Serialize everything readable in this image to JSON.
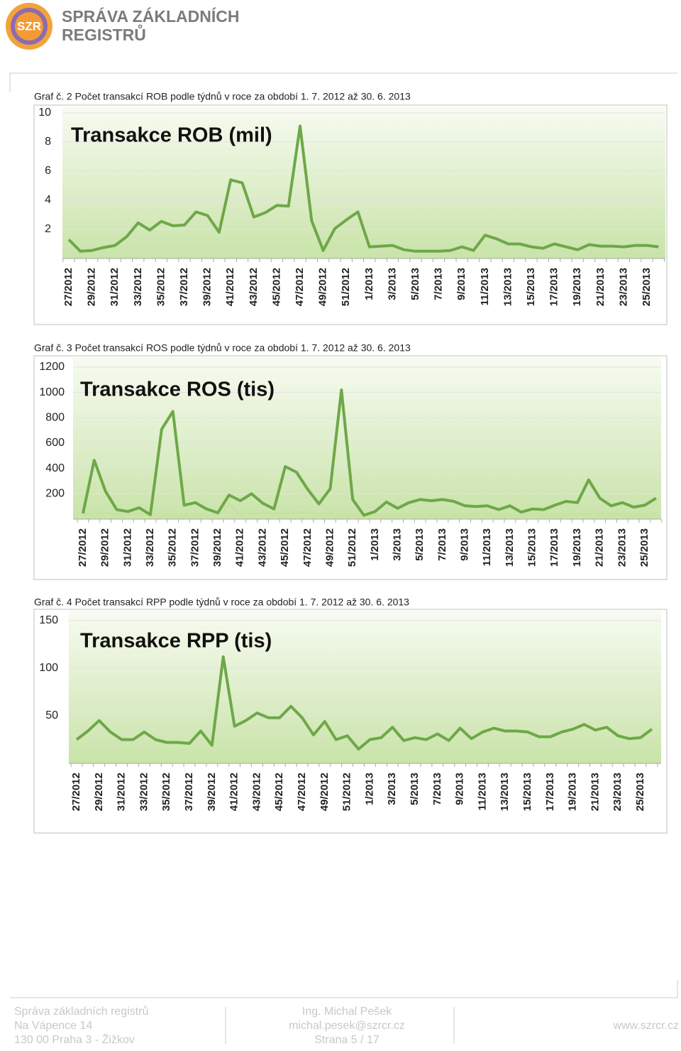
{
  "header": {
    "logo": "SZR",
    "title": [
      "SPRÁVA ZÁKLADNÍCH",
      "REGISTRŮ"
    ]
  },
  "chart_data": [
    {
      "type": "line",
      "caption": "Graf č. 2 Počet transakcí ROB podle týdnů v roce za období 1. 7. 2012 až 30. 6. 2013",
      "title": "Transakce ROB (mil)",
      "categories": [
        "27/2012",
        null,
        "29/2012",
        null,
        "31/2012",
        null,
        "33/2012",
        null,
        "35/2012",
        null,
        "37/2012",
        null,
        "39/2012",
        null,
        "41/2012",
        null,
        "43/2012",
        null,
        "45/2012",
        null,
        "47/2012",
        null,
        "49/2012",
        null,
        "51/2012",
        null,
        "1/2013",
        null,
        "3/2013",
        null,
        "5/2013",
        null,
        "7/2013",
        null,
        "9/2013",
        null,
        "11/2013",
        null,
        "13/2013",
        null,
        "15/2013",
        null,
        "17/2013",
        null,
        "19/2013",
        null,
        "21/2013",
        null,
        "23/2013",
        null,
        "25/2013",
        null
      ],
      "series": [
        {
          "color": "#6ea848",
          "values": [
            1.3,
            0.5,
            0.55,
            0.75,
            0.9,
            1.5,
            2.45,
            1.95,
            2.55,
            2.25,
            2.3,
            3.2,
            2.95,
            1.8,
            5.4,
            5.2,
            2.85,
            3.15,
            3.65,
            3.6,
            9.1,
            2.6,
            0.55,
            2.05,
            2.65,
            3.2,
            0.8,
            0.85,
            0.9,
            0.6,
            0.5,
            0.5,
            0.5,
            0.55,
            0.8,
            0.55,
            1.6,
            1.35,
            1.0,
            1.0,
            0.8,
            0.7,
            1.0,
            0.8,
            0.6,
            0.95,
            0.85,
            0.85,
            0.8,
            0.9,
            0.9,
            0.8
          ]
        }
      ],
      "ylim": [
        0,
        10
      ],
      "yticks": [
        2,
        4,
        6,
        8,
        10
      ],
      "grid": true
    },
    {
      "type": "line",
      "caption": "Graf č. 3 Počet transakcí ROS podle týdnů v roce za období 1. 7. 2012 až 30. 6. 2013",
      "title": "Transakce ROS (tis)",
      "categories": [
        "27/2012",
        null,
        "29/2012",
        null,
        "31/2012",
        null,
        "33/2012",
        null,
        "35/2012",
        null,
        "37/2012",
        null,
        "39/2012",
        null,
        "41/2012",
        null,
        "43/2012",
        null,
        "45/2012",
        null,
        "47/2012",
        null,
        "49/2012",
        null,
        "51/2012",
        null,
        "1/2013",
        null,
        "3/2013",
        null,
        "5/2013",
        null,
        "7/2013",
        null,
        "9/2013",
        null,
        "11/2013",
        null,
        "13/2013",
        null,
        "15/2013",
        null,
        "17/2013",
        null,
        "19/2013",
        null,
        "21/2013",
        null,
        "23/2013",
        null,
        "25/2013",
        null
      ],
      "series": [
        {
          "color": "#c6e2a4",
          "values": [
            35,
            40,
            50,
            40,
            35,
            40,
            35,
            30,
            25,
            25,
            30,
            30,
            35,
            120,
            35,
            40,
            50,
            45,
            45,
            60,
            50,
            35,
            40,
            30,
            30,
            25,
            30,
            30,
            35,
            30,
            30,
            30,
            35,
            30,
            30,
            35,
            35,
            30,
            30,
            30,
            35,
            30,
            30,
            35,
            35,
            40,
            40,
            35,
            35,
            30,
            30,
            40
          ]
        },
        {
          "color": "#6ea848",
          "values": [
            45,
            465,
            220,
            75,
            60,
            90,
            35,
            710,
            850,
            110,
            130,
            80,
            50,
            190,
            145,
            200,
            125,
            80,
            415,
            370,
            235,
            120,
            240,
            1020,
            155,
            30,
            60,
            135,
            85,
            130,
            155,
            145,
            155,
            140,
            105,
            100,
            105,
            75,
            105,
            55,
            80,
            75,
            110,
            140,
            130,
            310,
            165,
            105,
            130,
            95,
            110,
            165
          ]
        }
      ],
      "ylim": [
        0,
        1200
      ],
      "yticks": [
        200,
        400,
        600,
        800,
        1000,
        1200
      ],
      "grid": true
    },
    {
      "type": "line",
      "caption": "Graf č. 4 Počet transakcí RPP podle týdnů v roce za období 1. 7. 2012 až 30. 6. 2013",
      "title": "Transakce RPP (tis)",
      "categories": [
        "27/2012",
        null,
        "29/2012",
        null,
        "31/2012",
        null,
        "33/2012",
        null,
        "35/2012",
        null,
        "37/2012",
        null,
        "39/2012",
        null,
        "41/2012",
        null,
        "43/2012",
        null,
        "45/2012",
        null,
        "47/2012",
        null,
        "49/2012",
        null,
        "51/2012",
        null,
        "1/2013",
        null,
        "3/2013",
        null,
        "5/2013",
        null,
        "7/2013",
        null,
        "9/2013",
        null,
        "11/2013",
        null,
        "13/2013",
        null,
        "15/2013",
        null,
        "17/2013",
        null,
        "19/2013",
        null,
        "21/2013",
        null,
        "23/2013",
        null,
        "25/2013",
        null
      ],
      "series": [
        {
          "color": "#6ea848",
          "values": [
            25,
            34,
            45,
            33,
            25,
            25,
            33,
            25,
            22,
            22,
            21,
            34,
            19,
            112,
            39,
            45,
            53,
            48,
            48,
            60,
            48,
            30,
            44,
            25,
            29,
            15,
            25,
            27,
            38,
            24,
            27,
            25,
            31,
            24,
            37,
            26,
            33,
            37,
            34,
            34,
            33,
            28,
            28,
            33,
            36,
            41,
            35,
            38,
            29,
            26,
            27,
            36
          ]
        }
      ],
      "ylim": [
        0,
        150
      ],
      "yticks": [
        50,
        100,
        150
      ],
      "grid": true
    }
  ],
  "footer": {
    "left": [
      "Správa základních registrů",
      "Na Vápence 14",
      "130 00 Praha 3 - Žižkov"
    ],
    "middle": [
      "Ing. Michal Pešek",
      "michal.pesek@szrcr.cz",
      "Strana 5 / 17"
    ],
    "right": "www.szrcr.cz"
  }
}
